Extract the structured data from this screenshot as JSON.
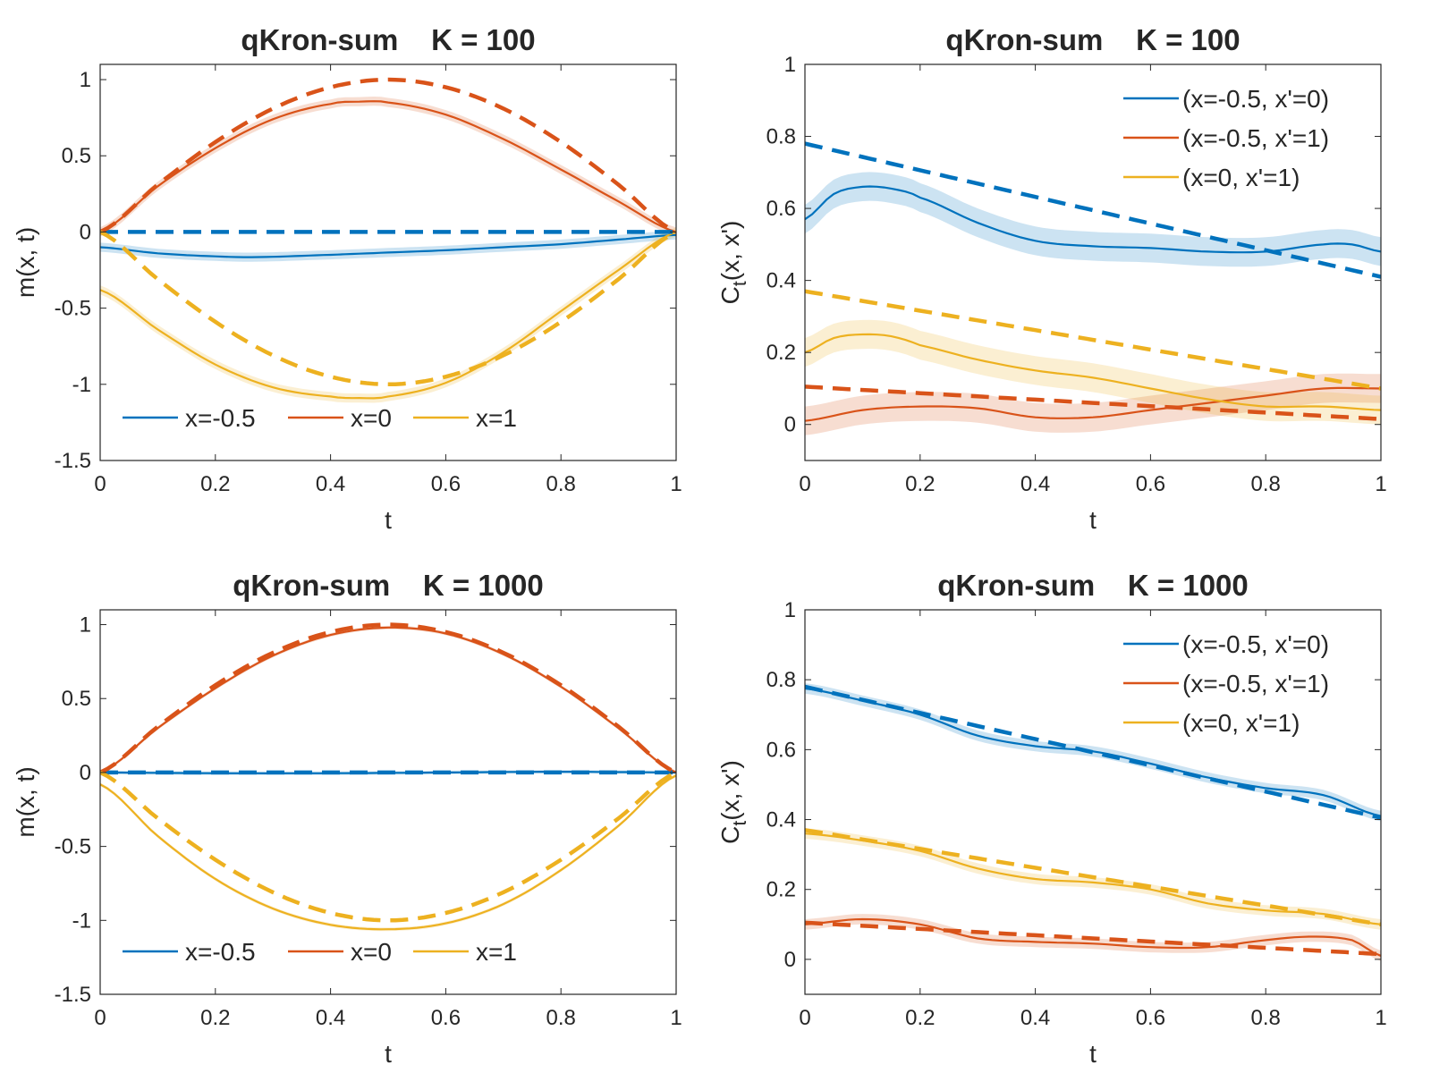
{
  "colors": {
    "blue": "#0072BD",
    "red": "#D95319",
    "yellow": "#EDB120",
    "axis": "#262626",
    "background": "#ffffff"
  },
  "chart_data": [
    {
      "type": "line",
      "title": "qKron-sum    K = 100",
      "xlabel": "t",
      "ylabel": "m(x, t)",
      "xlim": [
        0,
        1
      ],
      "ylim": [
        -1.5,
        1.1
      ],
      "xticks": [
        0,
        0.2,
        0.4,
        0.6,
        0.8,
        1
      ],
      "xtick_labels": [
        "0",
        "0.2",
        "0.4",
        "0.6",
        "0.8",
        "1"
      ],
      "yticks": [
        -1.5,
        -1,
        -0.5,
        0,
        0.5,
        1
      ],
      "ytick_labels": [
        "-1.5",
        "-1",
        "-0.5",
        "0",
        "0.5",
        "1"
      ],
      "legend": {
        "position": "bottom-horizontal",
        "entries": [
          "x=-0.5",
          "x=0",
          "x=1"
        ]
      },
      "series": [
        {
          "name": "x=-0.5",
          "color": "blue",
          "estimate": {
            "x": [
              0,
              0.1,
              0.2,
              0.27,
              0.4,
              0.5,
              0.6,
              0.7,
              0.8,
              0.9,
              1
            ],
            "y": [
              -0.1,
              -0.14,
              -0.16,
              -0.165,
              -0.15,
              -0.135,
              -0.12,
              -0.1,
              -0.08,
              -0.05,
              -0.02
            ]
          },
          "band": 0.03,
          "reference": {
            "x": [
              0,
              1
            ],
            "y": [
              0,
              0
            ]
          }
        },
        {
          "name": "x=0",
          "color": "red",
          "estimate": {
            "x": [
              0,
              0.1,
              0.2,
              0.3,
              0.4,
              0.45,
              0.5,
              0.6,
              0.7,
              0.8,
              0.9,
              1
            ],
            "y": [
              0,
              0.3,
              0.55,
              0.74,
              0.84,
              0.855,
              0.85,
              0.77,
              0.61,
              0.41,
              0.2,
              0
            ]
          },
          "band": 0.03,
          "reference": {
            "x": [
              0,
              0.1,
              0.2,
              0.3,
              0.4,
              0.5,
              0.6,
              0.7,
              0.8,
              0.9,
              1
            ],
            "y": [
              0,
              0.31,
              0.59,
              0.81,
              0.95,
              1.0,
              0.95,
              0.81,
              0.59,
              0.31,
              0
            ]
          }
        },
        {
          "name": "x=1",
          "color": "yellow",
          "estimate": {
            "x": [
              0,
              0.1,
              0.2,
              0.3,
              0.4,
              0.45,
              0.5,
              0.6,
              0.7,
              0.8,
              0.9,
              1
            ],
            "y": [
              -0.38,
              -0.64,
              -0.87,
              -1.02,
              -1.08,
              -1.09,
              -1.08,
              -0.99,
              -0.79,
              -0.52,
              -0.25,
              0
            ]
          },
          "band": 0.03,
          "reference": {
            "x": [
              0,
              0.1,
              0.2,
              0.3,
              0.4,
              0.5,
              0.6,
              0.7,
              0.8,
              0.9,
              1
            ],
            "y": [
              0,
              -0.31,
              -0.59,
              -0.81,
              -0.95,
              -1.0,
              -0.95,
              -0.81,
              -0.59,
              -0.31,
              0
            ]
          }
        }
      ]
    },
    {
      "type": "line",
      "title": "qKron-sum    K = 100",
      "xlabel": "t",
      "ylabel": "C_t(x, x')",
      "xlim": [
        0,
        1
      ],
      "ylim": [
        -0.1,
        1
      ],
      "xticks": [
        0,
        0.2,
        0.4,
        0.6,
        0.8,
        1
      ],
      "xtick_labels": [
        "0",
        "0.2",
        "0.4",
        "0.6",
        "0.8",
        "1"
      ],
      "yticks": [
        0,
        0.2,
        0.4,
        0.6,
        0.8,
        1
      ],
      "ytick_labels": [
        "0",
        "0.2",
        "0.4",
        "0.6",
        "0.8",
        "1"
      ],
      "legend": {
        "position": "top-right",
        "entries": [
          "(x=-0.5, x'=0)",
          "(x=-0.5, x'=1)",
          "(x=0, x'=1)"
        ]
      },
      "series": [
        {
          "name": "(x=-0.5, x'=0)",
          "color": "blue",
          "estimate": {
            "x": [
              0,
              0.05,
              0.1,
              0.15,
              0.2,
              0.3,
              0.4,
              0.5,
              0.6,
              0.7,
              0.8,
              0.9,
              0.95,
              1
            ],
            "y": [
              0.57,
              0.64,
              0.66,
              0.655,
              0.63,
              0.56,
              0.51,
              0.495,
              0.49,
              0.48,
              0.48,
              0.5,
              0.5,
              0.48
            ]
          },
          "band": 0.04,
          "reference": {
            "x": [
              0,
              1
            ],
            "y": [
              0.78,
              0.41
            ]
          }
        },
        {
          "name": "(x=-0.5, x'=1)",
          "color": "red",
          "estimate": {
            "x": [
              0,
              0.1,
              0.2,
              0.3,
              0.4,
              0.5,
              0.6,
              0.7,
              0.8,
              0.9,
              1
            ],
            "y": [
              0.01,
              0.04,
              0.05,
              0.045,
              0.02,
              0.02,
              0.04,
              0.06,
              0.08,
              0.1,
              0.1
            ]
          },
          "band": 0.04,
          "reference": {
            "x": [
              0,
              1
            ],
            "y": [
              0.105,
              0.015
            ]
          }
        },
        {
          "name": "(x=0, x'=1)",
          "color": "yellow",
          "estimate": {
            "x": [
              0,
              0.05,
              0.1,
              0.15,
              0.2,
              0.3,
              0.4,
              0.5,
              0.6,
              0.7,
              0.8,
              0.9,
              1
            ],
            "y": [
              0.2,
              0.24,
              0.25,
              0.245,
              0.22,
              0.18,
              0.15,
              0.13,
              0.1,
              0.07,
              0.05,
              0.05,
              0.04
            ]
          },
          "band": 0.04,
          "reference": {
            "x": [
              0,
              1
            ],
            "y": [
              0.37,
              0.1
            ]
          }
        }
      ]
    },
    {
      "type": "line",
      "title": "qKron-sum    K = 1000",
      "xlabel": "t",
      "ylabel": "m(x, t)",
      "xlim": [
        0,
        1
      ],
      "ylim": [
        -1.5,
        1.1
      ],
      "xticks": [
        0,
        0.2,
        0.4,
        0.6,
        0.8,
        1
      ],
      "xtick_labels": [
        "0",
        "0.2",
        "0.4",
        "0.6",
        "0.8",
        "1"
      ],
      "yticks": [
        -1.5,
        -1,
        -0.5,
        0,
        0.5,
        1
      ],
      "ytick_labels": [
        "-1.5",
        "-1",
        "-0.5",
        "0",
        "0.5",
        "1"
      ],
      "legend": {
        "position": "bottom-horizontal",
        "entries": [
          "x=-0.5",
          "x=0",
          "x=1"
        ]
      },
      "series": [
        {
          "name": "x=-0.5",
          "color": "blue",
          "estimate": {
            "x": [
              0,
              0.2,
              0.4,
              0.6,
              0.8,
              1
            ],
            "y": [
              0,
              -0.005,
              -0.005,
              0,
              0.005,
              0
            ]
          },
          "band": 0.012,
          "reference": {
            "x": [
              0,
              1
            ],
            "y": [
              0,
              0
            ]
          }
        },
        {
          "name": "x=0",
          "color": "red",
          "estimate": {
            "x": [
              0,
              0.1,
              0.2,
              0.3,
              0.4,
              0.5,
              0.6,
              0.7,
              0.8,
              0.9,
              1
            ],
            "y": [
              0,
              0.3,
              0.57,
              0.79,
              0.93,
              0.98,
              0.94,
              0.8,
              0.58,
              0.3,
              0
            ]
          },
          "band": 0.012,
          "reference": {
            "x": [
              0,
              0.1,
              0.2,
              0.3,
              0.4,
              0.5,
              0.6,
              0.7,
              0.8,
              0.9,
              1
            ],
            "y": [
              0,
              0.31,
              0.59,
              0.81,
              0.95,
              1.0,
              0.95,
              0.81,
              0.59,
              0.31,
              0
            ]
          }
        },
        {
          "name": "x=1",
          "color": "yellow",
          "estimate": {
            "x": [
              0,
              0.1,
              0.2,
              0.3,
              0.4,
              0.5,
              0.6,
              0.7,
              0.8,
              0.9,
              1
            ],
            "y": [
              -0.08,
              -0.43,
              -0.72,
              -0.92,
              -1.03,
              -1.06,
              -1.02,
              -0.89,
              -0.66,
              -0.36,
              -0.02
            ]
          },
          "band": 0.012,
          "reference": {
            "x": [
              0,
              0.1,
              0.2,
              0.3,
              0.4,
              0.5,
              0.6,
              0.7,
              0.8,
              0.9,
              1
            ],
            "y": [
              0,
              -0.31,
              -0.59,
              -0.81,
              -0.95,
              -1.0,
              -0.95,
              -0.81,
              -0.59,
              -0.31,
              0
            ]
          }
        }
      ]
    },
    {
      "type": "line",
      "title": "qKron-sum    K = 1000",
      "xlabel": "t",
      "ylabel": "C_t(x, x')",
      "xlim": [
        0,
        1
      ],
      "ylim": [
        -0.1,
        1
      ],
      "xticks": [
        0,
        0.2,
        0.4,
        0.6,
        0.8,
        1
      ],
      "xtick_labels": [
        "0",
        "0.2",
        "0.4",
        "0.6",
        "0.8",
        "1"
      ],
      "yticks": [
        0,
        0.2,
        0.4,
        0.6,
        0.8,
        1
      ],
      "ytick_labels": [
        "0",
        "0.2",
        "0.4",
        "0.6",
        "0.8",
        "1"
      ],
      "legend": {
        "position": "top-right",
        "entries": [
          "(x=-0.5, x'=0)",
          "(x=-0.5, x'=1)",
          "(x=0, x'=1)"
        ]
      },
      "series": [
        {
          "name": "(x=-0.5, x'=0)",
          "color": "blue",
          "estimate": {
            "x": [
              0,
              0.1,
              0.2,
              0.3,
              0.4,
              0.5,
              0.6,
              0.7,
              0.8,
              0.9,
              1
            ],
            "y": [
              0.775,
              0.74,
              0.7,
              0.64,
              0.61,
              0.595,
              0.56,
              0.52,
              0.49,
              0.47,
              0.41
            ]
          },
          "band": 0.015,
          "reference": {
            "x": [
              0,
              1
            ],
            "y": [
              0.78,
              0.405
            ]
          }
        },
        {
          "name": "(x=-0.5, x'=1)",
          "color": "red",
          "estimate": {
            "x": [
              0,
              0.1,
              0.2,
              0.3,
              0.4,
              0.5,
              0.6,
              0.7,
              0.8,
              0.88,
              0.95,
              1
            ],
            "y": [
              0.1,
              0.115,
              0.1,
              0.06,
              0.05,
              0.045,
              0.035,
              0.035,
              0.055,
              0.065,
              0.055,
              0.01
            ]
          },
          "band": 0.015,
          "reference": {
            "x": [
              0,
              1
            ],
            "y": [
              0.105,
              0.015
            ]
          }
        },
        {
          "name": "(x=0, x'=1)",
          "color": "yellow",
          "estimate": {
            "x": [
              0,
              0.1,
              0.2,
              0.3,
              0.4,
              0.5,
              0.6,
              0.7,
              0.8,
              0.9,
              1
            ],
            "y": [
              0.36,
              0.34,
              0.31,
              0.26,
              0.23,
              0.22,
              0.2,
              0.16,
              0.14,
              0.13,
              0.1
            ]
          },
          "band": 0.015,
          "reference": {
            "x": [
              0,
              1
            ],
            "y": [
              0.37,
              0.1
            ]
          }
        }
      ]
    }
  ]
}
